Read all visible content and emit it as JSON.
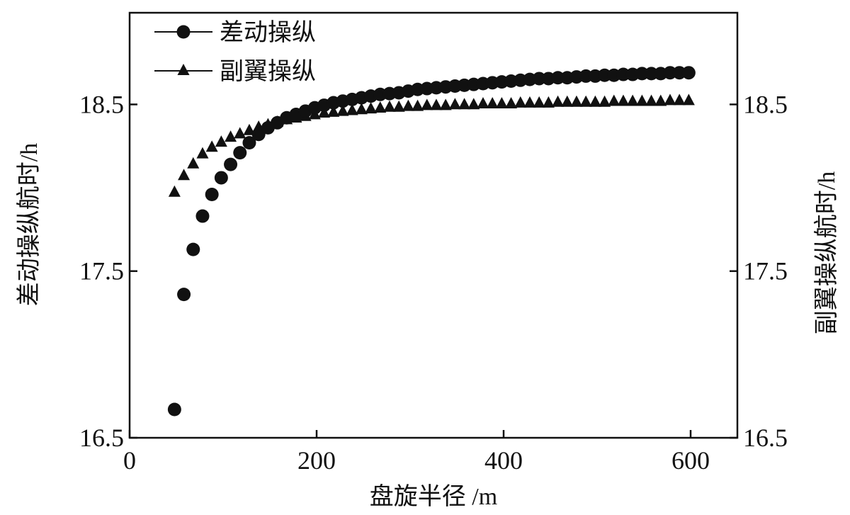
{
  "chart_data": {
    "type": "scatter",
    "title": "",
    "xlabel": "盘旋半径 /m",
    "ylabel": "差动操纵航时/h",
    "y2label": "副翼操纵航时/h",
    "xlim": [
      0,
      650
    ],
    "ylim": [
      16.5,
      19.05
    ],
    "y2lim": [
      16.5,
      19.05
    ],
    "xticks": [
      0,
      200,
      400,
      600
    ],
    "xtick_labels": [
      "0",
      "200",
      "400",
      "600"
    ],
    "yticks": [
      16.5,
      17.5,
      18.5
    ],
    "ytick_labels": [
      "16.5",
      "17.5",
      "18.5"
    ],
    "y2ticks": [
      16.5,
      17.5,
      18.5
    ],
    "y2tick_labels": [
      "16.5",
      "17.5",
      "18.5"
    ],
    "legend_position": "top-left",
    "series": [
      {
        "name": "差动操纵",
        "marker": "circle",
        "axis": "left",
        "x": [
          48,
          58,
          68,
          78,
          88,
          98,
          108,
          118,
          128,
          138,
          148,
          158,
          168,
          178,
          188,
          198,
          208,
          218,
          228,
          238,
          248,
          258,
          268,
          278,
          288,
          298,
          308,
          318,
          328,
          338,
          348,
          358,
          368,
          378,
          388,
          398,
          408,
          418,
          428,
          438,
          448,
          458,
          468,
          478,
          488,
          498,
          508,
          518,
          528,
          538,
          548,
          558,
          568,
          578,
          588,
          598
        ],
        "y": [
          16.67,
          17.36,
          17.63,
          17.83,
          17.96,
          18.06,
          18.14,
          18.21,
          18.27,
          18.32,
          18.36,
          18.39,
          18.42,
          18.44,
          18.46,
          18.48,
          18.495,
          18.51,
          18.52,
          18.53,
          18.54,
          18.55,
          18.56,
          18.565,
          18.57,
          18.58,
          18.59,
          18.595,
          18.6,
          18.605,
          18.61,
          18.615,
          18.62,
          18.625,
          18.63,
          18.635,
          18.64,
          18.645,
          18.65,
          18.655,
          18.655,
          18.66,
          18.66,
          18.665,
          18.67,
          18.67,
          18.675,
          18.675,
          18.68,
          18.68,
          18.685,
          18.685,
          18.685,
          18.69,
          18.69,
          18.69
        ]
      },
      {
        "name": "副翼操纵",
        "marker": "triangle",
        "axis": "right",
        "x": [
          48,
          58,
          68,
          78,
          88,
          98,
          108,
          118,
          128,
          138,
          148,
          158,
          168,
          178,
          188,
          198,
          208,
          218,
          228,
          238,
          248,
          258,
          268,
          278,
          288,
          298,
          308,
          318,
          328,
          338,
          348,
          358,
          368,
          378,
          388,
          398,
          408,
          418,
          428,
          438,
          448,
          458,
          468,
          478,
          488,
          498,
          508,
          518,
          528,
          538,
          548,
          558,
          568,
          578,
          588,
          598
        ],
        "y": [
          17.98,
          18.08,
          18.15,
          18.21,
          18.25,
          18.28,
          18.31,
          18.33,
          18.35,
          18.37,
          18.385,
          18.4,
          18.415,
          18.425,
          18.435,
          18.445,
          18.455,
          18.46,
          18.465,
          18.47,
          18.475,
          18.48,
          18.485,
          18.49,
          18.49,
          18.495,
          18.495,
          18.5,
          18.5,
          18.5,
          18.505,
          18.505,
          18.505,
          18.51,
          18.51,
          18.51,
          18.51,
          18.515,
          18.515,
          18.515,
          18.515,
          18.52,
          18.52,
          18.52,
          18.52,
          18.52,
          18.52,
          18.525,
          18.525,
          18.525,
          18.525,
          18.525,
          18.525,
          18.53,
          18.53,
          18.53
        ]
      }
    ]
  }
}
